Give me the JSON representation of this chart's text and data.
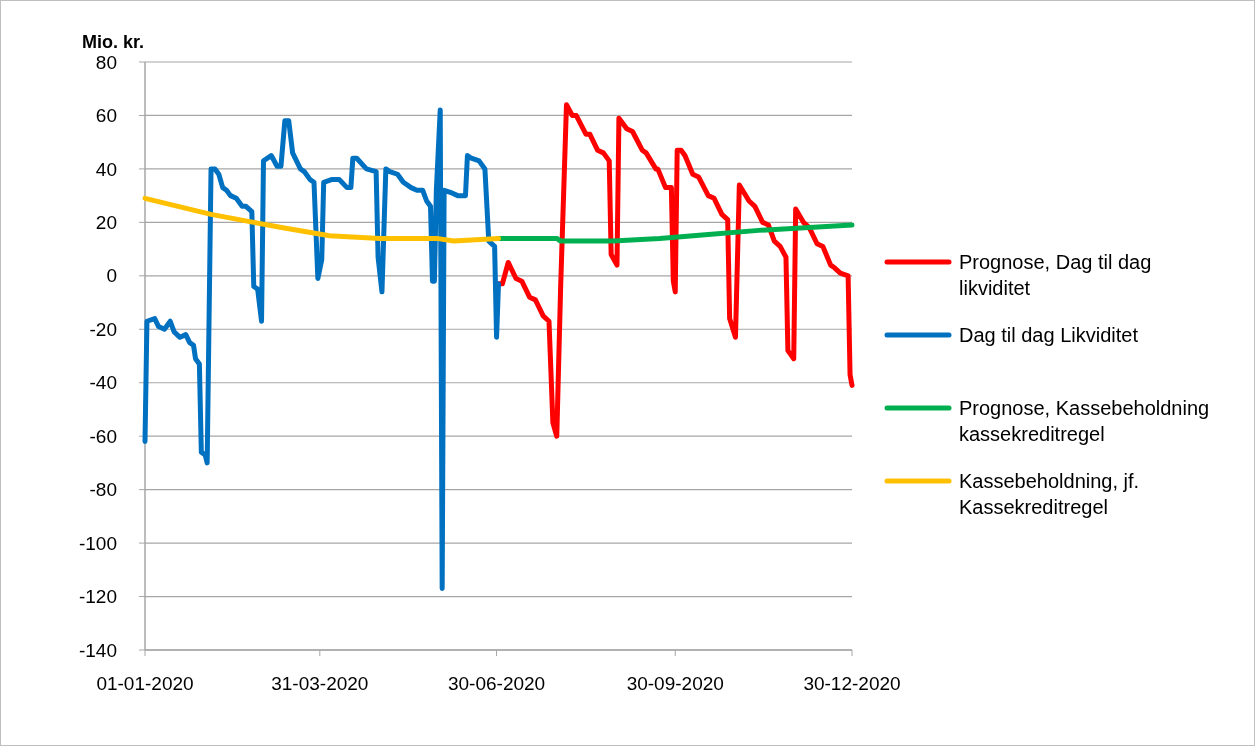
{
  "chart_data": {
    "type": "line",
    "ylabel": "Mio. kr.",
    "xlim": [
      "2020-01-01",
      "2020-12-30"
    ],
    "xticks": [
      {
        "value": "2020-01-01",
        "label": "01-01-2020"
      },
      {
        "value": "2020-03-31",
        "label": "31-03-2020"
      },
      {
        "value": "2020-06-30",
        "label": "30-06-2020"
      },
      {
        "value": "2020-09-30",
        "label": "30-09-2020"
      },
      {
        "value": "2020-12-30",
        "label": "30-12-2020"
      }
    ],
    "ylim": [
      -140,
      80
    ],
    "yticks": [
      -140,
      -120,
      -100,
      -80,
      -60,
      -40,
      -20,
      0,
      20,
      40,
      60,
      80
    ],
    "grid": "y",
    "legend": "right",
    "line_style": "solid",
    "marker": "none",
    "series": [
      {
        "name": "Prognose, Dag til dag likviditet",
        "color": "#ff0000",
        "x": [
          "2020-06-30",
          "2020-07-03",
          "2020-07-06",
          "2020-07-10",
          "2020-07-13",
          "2020-07-17",
          "2020-07-20",
          "2020-07-24",
          "2020-07-27",
          "2020-07-29",
          "2020-07-31",
          "2020-08-02",
          "2020-08-05",
          "2020-08-08",
          "2020-08-10",
          "2020-08-15",
          "2020-08-17",
          "2020-08-21",
          "2020-08-24",
          "2020-08-27",
          "2020-08-28",
          "2020-08-31",
          "2020-09-01",
          "2020-09-05",
          "2020-09-08",
          "2020-09-13",
          "2020-09-15",
          "2020-09-20",
          "2020-09-21",
          "2020-09-25",
          "2020-09-28",
          "2020-09-29",
          "2020-09-30",
          "2020-10-01",
          "2020-10-03",
          "2020-10-05",
          "2020-10-09",
          "2020-10-12",
          "2020-10-17",
          "2020-10-20",
          "2020-10-24",
          "2020-10-27",
          "2020-10-28",
          "2020-10-31",
          "2020-11-02",
          "2020-11-07",
          "2020-11-10",
          "2020-11-14",
          "2020-11-17",
          "2020-11-20",
          "2020-11-23",
          "2020-11-26",
          "2020-11-27",
          "2020-11-30",
          "2020-12-01",
          "2020-12-05",
          "2020-12-08",
          "2020-12-12",
          "2020-12-15",
          "2020-12-19",
          "2020-12-21",
          "2020-12-24",
          "2020-12-28",
          "2020-12-29",
          "2020-12-30"
        ],
        "values": [
          -3,
          -3,
          5,
          -1,
          -2,
          -8,
          -9,
          -15,
          -17,
          -55,
          -60,
          -4,
          64,
          60,
          60,
          53,
          53,
          47,
          46,
          43,
          8,
          4,
          59,
          55,
          54,
          47,
          46,
          40,
          40,
          33,
          33,
          -2,
          -6,
          47,
          47,
          45,
          38,
          37,
          30,
          29,
          23,
          21,
          -16,
          -23,
          34,
          28,
          26,
          20,
          19,
          13,
          11,
          7,
          -28,
          -31,
          25,
          20,
          18,
          12,
          11,
          4,
          3,
          1,
          0,
          -37,
          -41
        ]
      },
      {
        "name": "Dag til dag Likviditet",
        "color": "#0070c0",
        "x": [
          "2020-01-01",
          "2020-01-02",
          "2020-01-06",
          "2020-01-08",
          "2020-01-11",
          "2020-01-14",
          "2020-01-16",
          "2020-01-19",
          "2020-01-22",
          "2020-01-24",
          "2020-01-26",
          "2020-01-27",
          "2020-01-29",
          "2020-01-30",
          "2020-02-01",
          "2020-02-02",
          "2020-02-04",
          "2020-02-06",
          "2020-02-08",
          "2020-02-10",
          "2020-02-12",
          "2020-02-14",
          "2020-02-17",
          "2020-02-20",
          "2020-02-22",
          "2020-02-25",
          "2020-02-26",
          "2020-02-28",
          "2020-03-01",
          "2020-03-02",
          "2020-03-06",
          "2020-03-09",
          "2020-03-11",
          "2020-03-13",
          "2020-03-15",
          "2020-03-17",
          "2020-03-19",
          "2020-03-21",
          "2020-03-23",
          "2020-03-26",
          "2020-03-28",
          "2020-03-30",
          "2020-04-01",
          "2020-04-02",
          "2020-04-06",
          "2020-04-10",
          "2020-04-14",
          "2020-04-16",
          "2020-04-17",
          "2020-04-19",
          "2020-04-24",
          "2020-04-29",
          "2020-04-30",
          "2020-05-02",
          "2020-05-04",
          "2020-05-06",
          "2020-05-10",
          "2020-05-13",
          "2020-05-17",
          "2020-05-20",
          "2020-05-23",
          "2020-05-25",
          "2020-05-27",
          "2020-05-28",
          "2020-05-29",
          "2020-05-30",
          "2020-06-01",
          "2020-06-02",
          "2020-06-03",
          "2020-06-07",
          "2020-06-10",
          "2020-06-14",
          "2020-06-15",
          "2020-06-17",
          "2020-06-21",
          "2020-06-24",
          "2020-06-26",
          "2020-06-29",
          "2020-06-30",
          "2020-07-01"
        ],
        "values": [
          -62,
          -17,
          -16,
          -19,
          -20,
          -17,
          -21,
          -23,
          -22,
          -25,
          -26,
          -31,
          -33,
          -66,
          -67,
          -70,
          40,
          40,
          38,
          33,
          32,
          30,
          29,
          26,
          26,
          24,
          -4,
          -5,
          -17,
          43,
          45,
          41,
          41,
          58,
          58,
          46,
          43,
          40,
          39,
          36,
          35,
          -1,
          6,
          35,
          36,
          36,
          33,
          33,
          44,
          44,
          40,
          39,
          7,
          -6,
          40,
          39,
          38,
          35,
          33,
          32,
          32,
          28,
          26,
          -2,
          -2,
          32,
          62,
          -117,
          32,
          31,
          30,
          30,
          45,
          44,
          43,
          40,
          13,
          11,
          -23,
          -3
        ]
      },
      {
        "name": "Prognose, Kassebeholdning kassekreditregel",
        "color": "#00b050",
        "x": [
          "2020-07-01",
          "2020-07-31",
          "2020-08-02",
          "2020-08-29",
          "2020-09-22",
          "2020-10-17",
          "2020-11-12",
          "2020-12-30"
        ],
        "values": [
          14,
          14,
          13,
          13,
          14,
          15.5,
          17,
          19
        ]
      },
      {
        "name": "Kassebeholdning, jf. Kassekreditregel",
        "color": "#ffc000",
        "x": [
          "2020-01-01",
          "2020-02-04",
          "2020-02-26",
          "2020-03-12",
          "2020-04-05",
          "2020-05-01",
          "2020-05-30",
          "2020-06-08",
          "2020-07-01"
        ],
        "values": [
          29,
          23,
          20,
          18,
          15,
          14,
          14,
          13,
          14
        ]
      }
    ]
  }
}
